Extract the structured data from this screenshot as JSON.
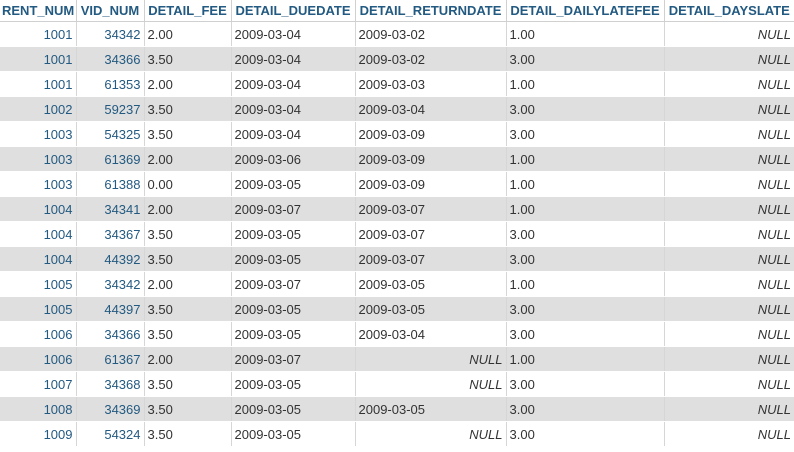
{
  "columns": [
    "RENT_NUM",
    "VID_NUM",
    "DETAIL_FEE",
    "DETAIL_DUEDATE",
    "DETAIL_RETURNDATE",
    "DETAIL_DAILYLATEFEE",
    "DETAIL_DAYSLATE"
  ],
  "rows": [
    [
      "1001",
      "34342",
      "2.00",
      "2009-03-04",
      "2009-03-02",
      "1.00",
      "NULL"
    ],
    [
      "1001",
      "34366",
      "3.50",
      "2009-03-04",
      "2009-03-02",
      "3.00",
      "NULL"
    ],
    [
      "1001",
      "61353",
      "2.00",
      "2009-03-04",
      "2009-03-03",
      "1.00",
      "NULL"
    ],
    [
      "1002",
      "59237",
      "3.50",
      "2009-03-04",
      "2009-03-04",
      "3.00",
      "NULL"
    ],
    [
      "1003",
      "54325",
      "3.50",
      "2009-03-04",
      "2009-03-09",
      "3.00",
      "NULL"
    ],
    [
      "1003",
      "61369",
      "2.00",
      "2009-03-06",
      "2009-03-09",
      "1.00",
      "NULL"
    ],
    [
      "1003",
      "61388",
      "0.00",
      "2009-03-05",
      "2009-03-09",
      "1.00",
      "NULL"
    ],
    [
      "1004",
      "34341",
      "2.00",
      "2009-03-07",
      "2009-03-07",
      "1.00",
      "NULL"
    ],
    [
      "1004",
      "34367",
      "3.50",
      "2009-03-05",
      "2009-03-07",
      "3.00",
      "NULL"
    ],
    [
      "1004",
      "44392",
      "3.50",
      "2009-03-05",
      "2009-03-07",
      "3.00",
      "NULL"
    ],
    [
      "1005",
      "34342",
      "2.00",
      "2009-03-07",
      "2009-03-05",
      "1.00",
      "NULL"
    ],
    [
      "1005",
      "44397",
      "3.50",
      "2009-03-05",
      "2009-03-05",
      "3.00",
      "NULL"
    ],
    [
      "1006",
      "34366",
      "3.50",
      "2009-03-05",
      "2009-03-04",
      "3.00",
      "NULL"
    ],
    [
      "1006",
      "61367",
      "2.00",
      "2009-03-07",
      "NULL",
      "1.00",
      "NULL"
    ],
    [
      "1007",
      "34368",
      "3.50",
      "2009-03-05",
      "NULL",
      "3.00",
      "NULL"
    ],
    [
      "1008",
      "34369",
      "3.50",
      "2009-03-05",
      "2009-03-05",
      "3.00",
      "NULL"
    ],
    [
      "1009",
      "54324",
      "3.50",
      "2009-03-05",
      "NULL",
      "3.00",
      "NULL"
    ]
  ]
}
